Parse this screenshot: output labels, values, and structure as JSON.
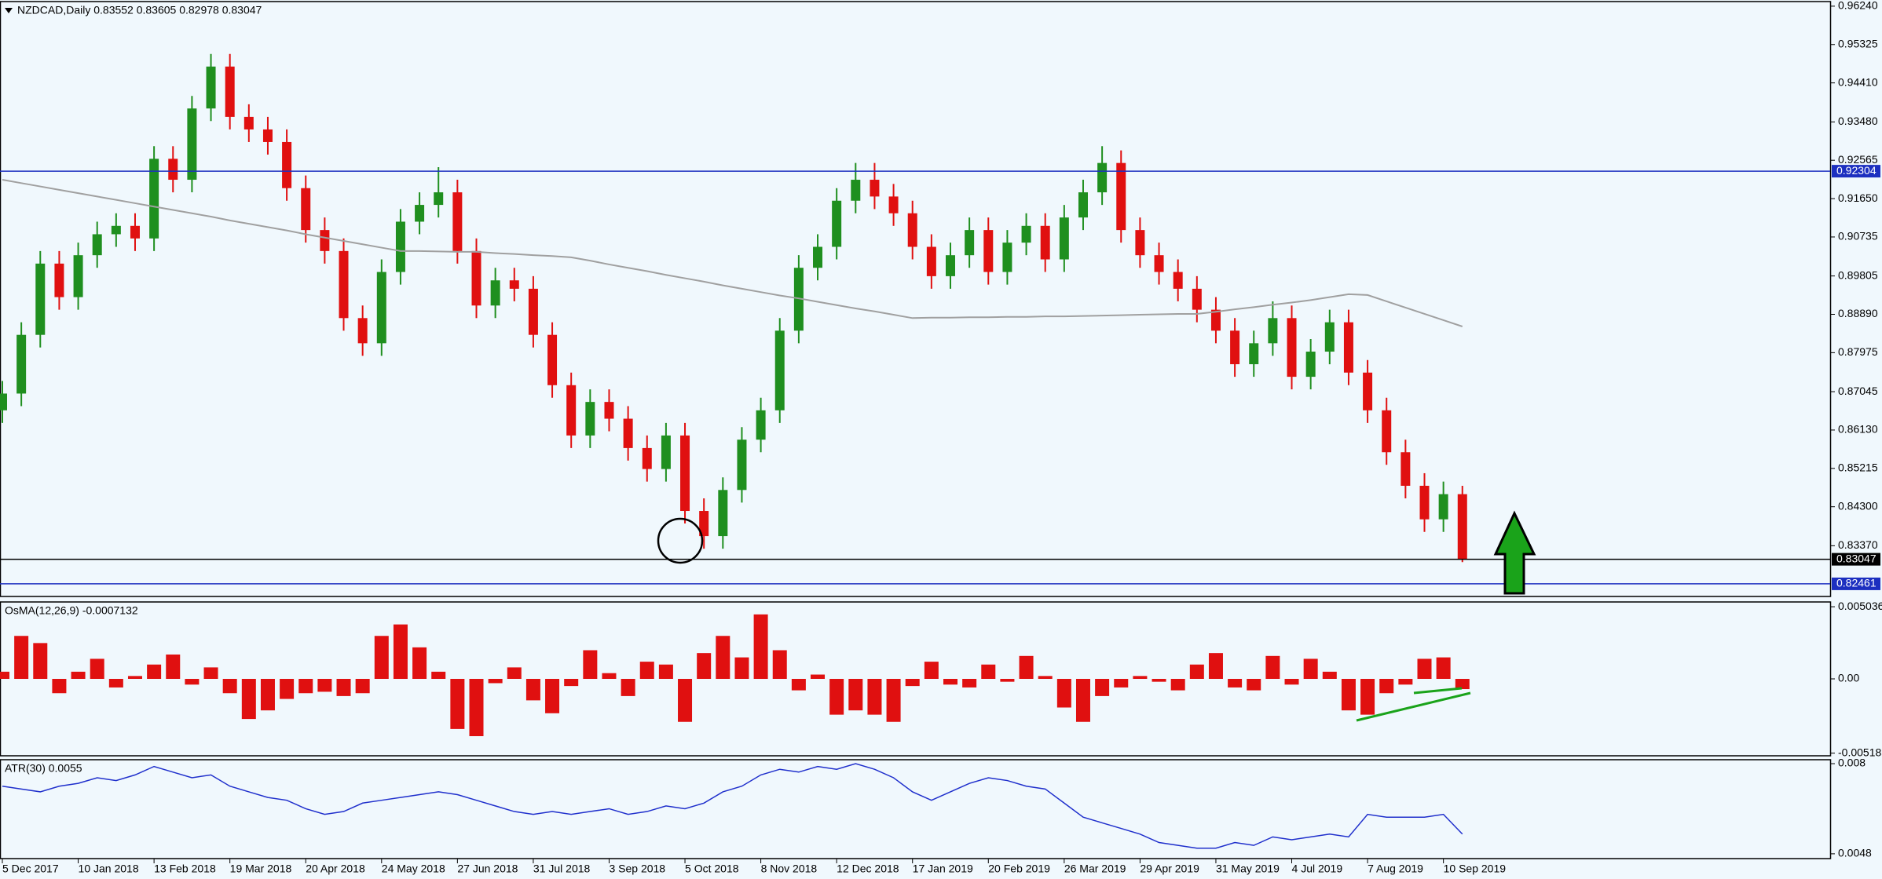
{
  "chart_data": [
    {
      "type": "candlestick",
      "title": "NZDCAD,Daily  0.83552 0.83605 0.82978 0.83047",
      "up_color": "#1f8f1f",
      "down_color": "#e01010",
      "ylim": [
        0.8216,
        0.9635
      ],
      "yticks": [
        {
          "value": 0.9624,
          "label": "0.96240"
        },
        0.95325,
        {
          "value": 0.9441,
          "label": "0.94410"
        },
        {
          "value": 0.9348,
          "label": "0.93480"
        },
        0.92565,
        {
          "value": 0.9165,
          "label": "0.91650"
        },
        0.90735,
        0.89805,
        {
          "value": 0.8889,
          "label": "0.88890"
        },
        0.87975,
        0.87045,
        {
          "value": 0.8613,
          "label": "0.86130"
        },
        0.85215,
        {
          "value": 0.843,
          "label": "0.84300"
        },
        {
          "value": 0.8337,
          "label": "0.83370"
        }
      ],
      "categories": [
        "5 Dec 2017",
        null,
        null,
        null,
        "10 Jan 2018",
        null,
        null,
        null,
        "13 Feb 2018",
        null,
        null,
        null,
        "19 Mar 2018",
        null,
        null,
        null,
        "20 Apr 2018",
        null,
        null,
        null,
        "24 May 2018",
        null,
        null,
        null,
        "27 Jun 2018",
        null,
        null,
        null,
        "31 Jul 2018",
        null,
        null,
        null,
        "3 Sep 2018",
        null,
        null,
        null,
        "5 Oct 2018",
        null,
        null,
        null,
        "8 Nov 2018",
        null,
        null,
        null,
        "12 Dec 2018",
        null,
        null,
        null,
        "17 Jan 2019",
        null,
        null,
        null,
        "20 Feb 2019",
        null,
        null,
        null,
        "26 Mar 2019",
        null,
        null,
        null,
        "29 Apr 2019",
        null,
        null,
        null,
        "31 May 2019",
        null,
        null,
        null,
        "4 Jul 2019",
        null,
        null,
        null,
        "7 Aug 2019",
        null,
        null,
        null,
        "10 Sep 2019",
        null
      ],
      "candles": [
        [
          0.866,
          0.873,
          0.863,
          0.87
        ],
        [
          0.87,
          0.887,
          0.867,
          0.884
        ],
        [
          0.884,
          0.904,
          0.881,
          0.901
        ],
        [
          0.901,
          0.904,
          0.89,
          0.893
        ],
        [
          0.893,
          0.906,
          0.89,
          0.903
        ],
        [
          0.903,
          0.911,
          0.9,
          0.908
        ],
        [
          0.908,
          0.913,
          0.905,
          0.91
        ],
        [
          0.91,
          0.913,
          0.904,
          0.907
        ],
        [
          0.907,
          0.929,
          0.904,
          0.926
        ],
        [
          0.926,
          0.929,
          0.918,
          0.921
        ],
        [
          0.921,
          0.941,
          0.918,
          0.938
        ],
        [
          0.938,
          0.951,
          0.935,
          0.948
        ],
        [
          0.948,
          0.951,
          0.933,
          0.936
        ],
        [
          0.936,
          0.939,
          0.93,
          0.933
        ],
        [
          0.933,
          0.936,
          0.927,
          0.93
        ],
        [
          0.93,
          0.933,
          0.916,
          0.919
        ],
        [
          0.919,
          0.922,
          0.906,
          0.909
        ],
        [
          0.909,
          0.912,
          0.901,
          0.904
        ],
        [
          0.904,
          0.907,
          0.885,
          0.888
        ],
        [
          0.888,
          0.891,
          0.879,
          0.882
        ],
        [
          0.882,
          0.902,
          0.879,
          0.899
        ],
        [
          0.899,
          0.914,
          0.896,
          0.911
        ],
        [
          0.911,
          0.918,
          0.908,
          0.915
        ],
        [
          0.915,
          0.924,
          0.912,
          0.918
        ],
        [
          0.918,
          0.921,
          0.901,
          0.904
        ],
        [
          0.904,
          0.907,
          0.888,
          0.891
        ],
        [
          0.891,
          0.9,
          0.888,
          0.897
        ],
        [
          0.897,
          0.9,
          0.892,
          0.895
        ],
        [
          0.895,
          0.898,
          0.881,
          0.884
        ],
        [
          0.884,
          0.887,
          0.869,
          0.872
        ],
        [
          0.872,
          0.875,
          0.857,
          0.86
        ],
        [
          0.86,
          0.871,
          0.857,
          0.868
        ],
        [
          0.868,
          0.871,
          0.861,
          0.864
        ],
        [
          0.864,
          0.867,
          0.854,
          0.857
        ],
        [
          0.857,
          0.86,
          0.849,
          0.852
        ],
        [
          0.852,
          0.863,
          0.849,
          0.86
        ],
        [
          0.86,
          0.863,
          0.839,
          0.842
        ],
        [
          0.842,
          0.845,
          0.833,
          0.836
        ],
        [
          0.836,
          0.85,
          0.833,
          0.847
        ],
        [
          0.847,
          0.862,
          0.844,
          0.859
        ],
        [
          0.859,
          0.869,
          0.856,
          0.866
        ],
        [
          0.866,
          0.888,
          0.863,
          0.885
        ],
        [
          0.885,
          0.903,
          0.882,
          0.9
        ],
        [
          0.9,
          0.908,
          0.897,
          0.905
        ],
        [
          0.905,
          0.919,
          0.902,
          0.916
        ],
        [
          0.916,
          0.925,
          0.913,
          0.921
        ],
        [
          0.921,
          0.925,
          0.914,
          0.917
        ],
        [
          0.917,
          0.92,
          0.91,
          0.913
        ],
        [
          0.913,
          0.916,
          0.902,
          0.905
        ],
        [
          0.905,
          0.908,
          0.895,
          0.898
        ],
        [
          0.898,
          0.906,
          0.895,
          0.903
        ],
        [
          0.903,
          0.912,
          0.9,
          0.909
        ],
        [
          0.909,
          0.912,
          0.896,
          0.899
        ],
        [
          0.899,
          0.909,
          0.896,
          0.906
        ],
        [
          0.906,
          0.913,
          0.903,
          0.91
        ],
        [
          0.91,
          0.913,
          0.899,
          0.902
        ],
        [
          0.902,
          0.915,
          0.899,
          0.912
        ],
        [
          0.912,
          0.921,
          0.909,
          0.918
        ],
        [
          0.918,
          0.929,
          0.915,
          0.925
        ],
        [
          0.925,
          0.928,
          0.906,
          0.909
        ],
        [
          0.909,
          0.912,
          0.9,
          0.903
        ],
        [
          0.903,
          0.906,
          0.896,
          0.899
        ],
        [
          0.899,
          0.902,
          0.892,
          0.895
        ],
        [
          0.895,
          0.898,
          0.887,
          0.89
        ],
        [
          0.89,
          0.893,
          0.882,
          0.885
        ],
        [
          0.885,
          0.888,
          0.874,
          0.877
        ],
        [
          0.877,
          0.885,
          0.874,
          0.882
        ],
        [
          0.882,
          0.892,
          0.879,
          0.888
        ],
        [
          0.888,
          0.891,
          0.871,
          0.874
        ],
        [
          0.874,
          0.883,
          0.871,
          0.88
        ],
        [
          0.88,
          0.89,
          0.877,
          0.887
        ],
        [
          0.887,
          0.89,
          0.872,
          0.875
        ],
        [
          0.875,
          0.878,
          0.863,
          0.866
        ],
        [
          0.866,
          0.869,
          0.853,
          0.856
        ],
        [
          0.856,
          0.859,
          0.845,
          0.848
        ],
        [
          0.848,
          0.851,
          0.837,
          0.84
        ],
        [
          0.84,
          0.849,
          0.837,
          0.846
        ],
        [
          0.846,
          0.848,
          0.8298,
          0.83047
        ]
      ],
      "ma": {
        "color": "#a0a0a0",
        "values": [
          0.921,
          0.9202,
          0.9194,
          0.9186,
          0.9178,
          0.917,
          0.9162,
          0.9154,
          0.9146,
          0.9138,
          0.913,
          0.9122,
          0.9113,
          0.9105,
          0.9097,
          0.9089,
          0.908,
          0.9072,
          0.9064,
          0.9056,
          0.9048,
          0.904,
          0.904,
          0.9039,
          0.9038,
          0.9038,
          0.9035,
          0.9033,
          0.903,
          0.9028,
          0.9025,
          0.9017,
          0.9008,
          0.9,
          0.8992,
          0.8983,
          0.8975,
          0.8967,
          0.8958,
          0.895,
          0.8942,
          0.8934,
          0.8927,
          0.8919,
          0.8911,
          0.8903,
          0.8896,
          0.8888,
          0.888,
          0.8881,
          0.8881,
          0.8882,
          0.8882,
          0.8883,
          0.8883,
          0.8884,
          0.8884,
          0.8885,
          0.8886,
          0.8887,
          0.8888,
          0.8889,
          0.889,
          0.889,
          0.8895,
          0.8901,
          0.8906,
          0.8912,
          0.8917,
          0.8923,
          0.893,
          0.8937,
          0.8935,
          0.892,
          0.8905,
          0.889,
          0.8875,
          0.886
        ]
      },
      "hlines": [
        {
          "value": 0.92304,
          "color": "#1c2fc0"
        },
        {
          "value": 0.83047,
          "color": "#000000"
        },
        {
          "value": 0.82461,
          "color": "#1c2fc0"
        }
      ]
    },
    {
      "type": "bar",
      "title": "OsMA(12,26,9) -0.0007132",
      "color": "#e01010",
      "ylim": [
        -0.00537,
        0.00537
      ],
      "yticks": [
        0.0050366,
        {
          "value": 0,
          "label": "0.00"
        },
        -0.0051853
      ],
      "values": [
        0.0005,
        0.003,
        0.0025,
        -0.001,
        0.0005,
        0.0014,
        -0.0006,
        0.0002,
        0.001,
        0.0017,
        -0.0004,
        0.0008,
        -0.001,
        -0.0028,
        -0.0022,
        -0.0014,
        -0.001,
        -0.0009,
        -0.0012,
        -0.001,
        0.003,
        0.0038,
        0.0022,
        0.0005,
        -0.0035,
        -0.004,
        -0.0003,
        0.0008,
        -0.0015,
        -0.0024,
        -0.0005,
        0.002,
        0.0004,
        -0.0012,
        0.0012,
        0.001,
        -0.003,
        0.0018,
        0.003,
        0.0015,
        0.0045,
        0.002,
        -0.0008,
        0.0003,
        -0.0025,
        -0.0022,
        -0.0025,
        -0.003,
        -0.0005,
        0.0012,
        -0.0004,
        -0.0006,
        0.001,
        -0.0002,
        0.0016,
        0.0002,
        -0.002,
        -0.003,
        -0.0012,
        -0.0006,
        0.0002,
        -0.0002,
        -0.0008,
        0.001,
        0.0018,
        -0.0006,
        -0.0008,
        0.0016,
        -0.0004,
        0.0014,
        0.0005,
        -0.0022,
        -0.0025,
        -0.001,
        -0.0004,
        0.0014,
        0.0015,
        -0.0007132
      ]
    },
    {
      "type": "line",
      "title": "ATR(30) 0.0055",
      "color": "#1f2fcc",
      "ylim": [
        0.00463,
        0.00814
      ],
      "yticks": [
        0.008,
        0.0048
      ],
      "values": [
        0.0072,
        0.0071,
        0.007,
        0.0072,
        0.0073,
        0.0075,
        0.0074,
        0.0076,
        0.0079,
        0.0077,
        0.0075,
        0.0076,
        0.0072,
        0.007,
        0.0068,
        0.0067,
        0.0064,
        0.0062,
        0.0063,
        0.0066,
        0.0067,
        0.0068,
        0.0069,
        0.007,
        0.0069,
        0.0067,
        0.0065,
        0.0063,
        0.0062,
        0.0063,
        0.0062,
        0.0063,
        0.0064,
        0.0062,
        0.0063,
        0.0065,
        0.0064,
        0.0066,
        0.007,
        0.0072,
        0.0076,
        0.0078,
        0.0077,
        0.0079,
        0.0078,
        0.008,
        0.0078,
        0.0075,
        0.007,
        0.0067,
        0.007,
        0.0073,
        0.0075,
        0.0074,
        0.0072,
        0.0071,
        0.0066,
        0.0061,
        0.0059,
        0.0057,
        0.0055,
        0.0052,
        0.0051,
        0.005,
        0.005,
        0.0052,
        0.0051,
        0.0054,
        0.0053,
        0.0054,
        0.0055,
        0.0054,
        0.0062,
        0.0061,
        0.0061,
        0.0061,
        0.0062,
        0.0055
      ]
    }
  ]
}
